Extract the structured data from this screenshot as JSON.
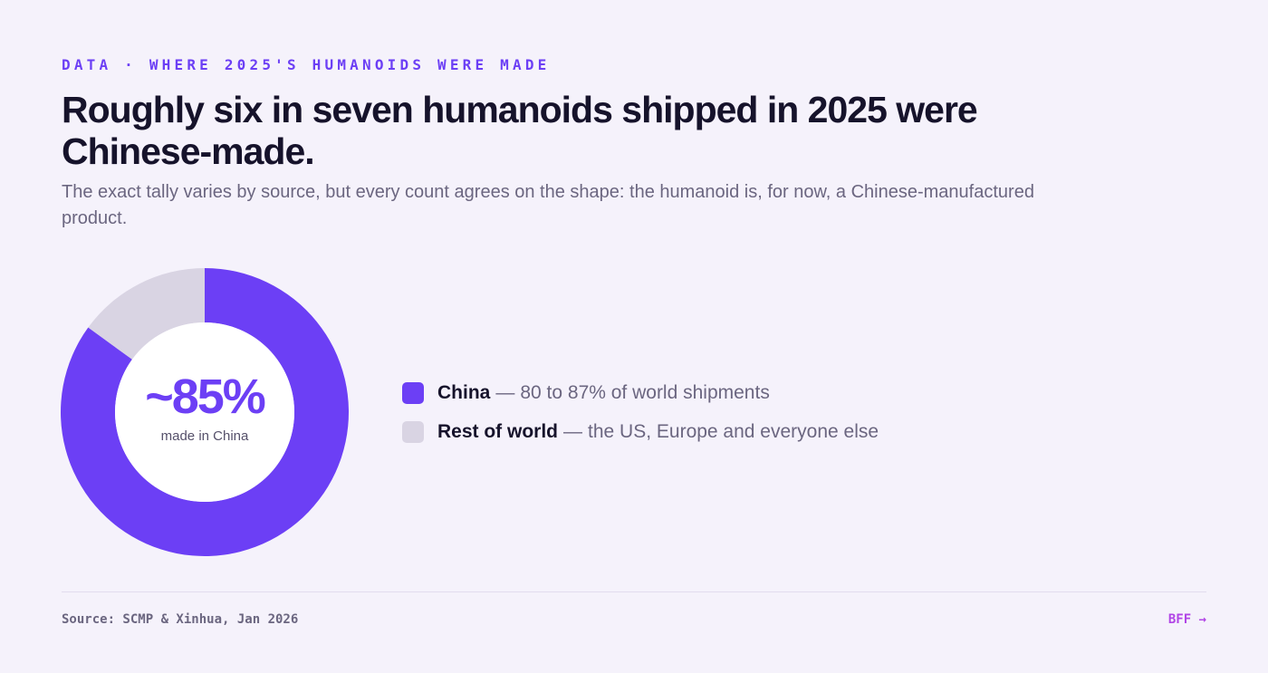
{
  "header": {
    "kicker": "DATA · WHERE 2025'S HUMANOIDS WERE MADE",
    "headline": "Roughly six in seven humanoids shipped in 2025 were Chinese-made.",
    "subhead": "The exact tally varies by source, but every count agrees on the shape: the humanoid is, for now, a Chinese-manufactured product."
  },
  "chart_data": {
    "type": "pie",
    "variant": "donut",
    "title": "",
    "categories": [
      "China",
      "Rest of world"
    ],
    "values": [
      85,
      15
    ],
    "unit": "%",
    "colors": [
      "#6c3ff5",
      "#d9d4e3"
    ],
    "center_label": {
      "value": "~85%",
      "caption": "made in China"
    },
    "legend_placement": "right",
    "legend": [
      {
        "name": "China",
        "separator": "—",
        "description": "80 to 87% of world shipments"
      },
      {
        "name": "Rest of world",
        "separator": "—",
        "description": "the US, Europe and everyone else"
      }
    ]
  },
  "footer": {
    "source": "Source: SCMP & Xinhua, Jan 2026",
    "brand": "BFF →"
  },
  "colors": {
    "background": "#f5f2fb",
    "accent": "#6c3ff5",
    "brand": "#b145e6",
    "heading": "#16132b",
    "muted": "#6b6680"
  }
}
